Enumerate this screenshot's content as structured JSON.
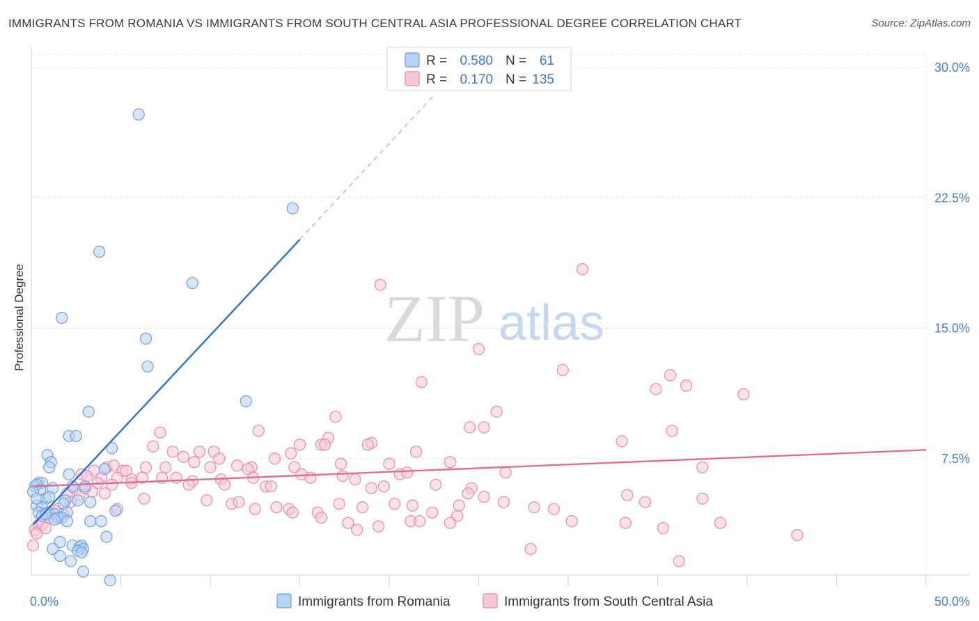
{
  "title": "IMMIGRANTS FROM ROMANIA VS IMMIGRANTS FROM SOUTH CENTRAL ASIA PROFESSIONAL DEGREE CORRELATION CHART",
  "source": "Source: ZipAtlas.com",
  "watermark": {
    "zip": "ZIP",
    "atlas": "atlas"
  },
  "colors": {
    "blue": "#6f9fe0",
    "blue_fill": "#b8d2f3",
    "blue_line": "#2c6fcf",
    "pink": "#e88aa8",
    "pink_fill": "#f7c9d8",
    "pink_line": "#e06c95",
    "grid": "#e3e3e3",
    "tick_text": "#4a7cc4"
  },
  "legend": {
    "r_label": "R =",
    "n_label": "N =",
    "rows": [
      {
        "r": "0.580",
        "n": "61"
      },
      {
        "r": "0.170",
        "n": "135"
      }
    ]
  },
  "chart_data": {
    "type": "scatter",
    "xlabel": "",
    "ylabel": "Professional Degree",
    "xlim": [
      0,
      50
    ],
    "ylim": [
      0,
      30.5
    ],
    "x_tick_labels": [
      "0.0%",
      "50.0%"
    ],
    "y_ticks": [
      7.5,
      15.0,
      22.5,
      30.0
    ],
    "y_tick_labels": [
      "7.5%",
      "15.0%",
      "22.5%",
      "30.0%"
    ],
    "series": [
      {
        "name": "Immigrants from Romania",
        "color": "blue",
        "trend": {
          "x0": 0.1,
          "y0": 3.7,
          "x1": 15.0,
          "y1": 20.1,
          "dash_x1": 22.5,
          "dash_y1": 28.4
        },
        "points": [
          [
            6.0,
            27.3
          ],
          [
            14.6,
            21.9
          ],
          [
            3.8,
            19.4
          ],
          [
            9.0,
            17.6
          ],
          [
            1.7,
            15.6
          ],
          [
            6.4,
            14.4
          ],
          [
            6.5,
            12.8
          ],
          [
            12.0,
            10.8
          ],
          [
            3.2,
            10.2
          ],
          [
            2.1,
            8.8
          ],
          [
            2.5,
            8.8
          ],
          [
            0.9,
            7.7
          ],
          [
            4.5,
            8.1
          ],
          [
            1.1,
            7.3
          ],
          [
            1.0,
            7.0
          ],
          [
            4.1,
            6.9
          ],
          [
            2.1,
            6.6
          ],
          [
            0.4,
            6.1
          ],
          [
            0.6,
            6.1
          ],
          [
            0.2,
            5.9
          ],
          [
            0.3,
            6.0
          ],
          [
            0.5,
            5.7
          ],
          [
            0.1,
            5.6
          ],
          [
            1.2,
            5.8
          ],
          [
            2.3,
            5.9
          ],
          [
            3.0,
            5.9
          ],
          [
            0.8,
            5.2
          ],
          [
            1.9,
            5.1
          ],
          [
            0.3,
            4.8
          ],
          [
            0.6,
            4.7
          ],
          [
            1.8,
            4.9
          ],
          [
            2.6,
            5.1
          ],
          [
            3.3,
            5.0
          ],
          [
            0.4,
            4.4
          ],
          [
            0.9,
            4.4
          ],
          [
            1.3,
            4.3
          ],
          [
            2.0,
            4.4
          ],
          [
            0.6,
            4.2
          ],
          [
            1.5,
            4.1
          ],
          [
            1.7,
            4.1
          ],
          [
            1.3,
            4.0
          ],
          [
            2.0,
            3.9
          ],
          [
            3.3,
            3.9
          ],
          [
            3.9,
            3.9
          ],
          [
            4.7,
            4.5
          ],
          [
            0.8,
            4.3
          ],
          [
            4.2,
            3.0
          ],
          [
            1.6,
            2.7
          ],
          [
            2.3,
            2.5
          ],
          [
            2.8,
            2.5
          ],
          [
            2.7,
            2.4
          ],
          [
            2.9,
            2.3
          ],
          [
            1.2,
            2.3
          ],
          [
            1.6,
            1.9
          ],
          [
            2.6,
            2.2
          ],
          [
            2.8,
            2.1
          ],
          [
            2.2,
            1.6
          ],
          [
            2.9,
            1.0
          ],
          [
            4.4,
            0.5
          ],
          [
            0.3,
            5.2
          ],
          [
            1.0,
            5.3
          ]
        ]
      },
      {
        "name": "Immigrants from South Central Asia",
        "color": "pink",
        "trend": {
          "x0": 0.0,
          "y0": 5.9,
          "x1": 50.0,
          "y1": 8.0
        },
        "points": [
          [
            30.8,
            18.4
          ],
          [
            19.5,
            17.5
          ],
          [
            25.0,
            13.8
          ],
          [
            29.7,
            12.6
          ],
          [
            35.7,
            12.3
          ],
          [
            21.8,
            11.9
          ],
          [
            36.6,
            11.7
          ],
          [
            34.9,
            11.5
          ],
          [
            39.8,
            11.2
          ],
          [
            26.0,
            10.2
          ],
          [
            17.0,
            9.9
          ],
          [
            12.7,
            9.1
          ],
          [
            7.2,
            9.0
          ],
          [
            24.5,
            9.3
          ],
          [
            25.3,
            9.3
          ],
          [
            35.8,
            9.1
          ],
          [
            16.6,
            8.7
          ],
          [
            19.0,
            8.4
          ],
          [
            33.0,
            8.5
          ],
          [
            6.8,
            8.2
          ],
          [
            15.0,
            8.3
          ],
          [
            16.2,
            8.3
          ],
          [
            16.4,
            8.3
          ],
          [
            18.8,
            8.3
          ],
          [
            7.9,
            7.9
          ],
          [
            9.4,
            7.9
          ],
          [
            10.2,
            7.9
          ],
          [
            21.5,
            7.9
          ],
          [
            14.5,
            7.8
          ],
          [
            8.5,
            7.6
          ],
          [
            10.5,
            7.5
          ],
          [
            13.6,
            7.5
          ],
          [
            23.4,
            7.3
          ],
          [
            12.3,
            7.0
          ],
          [
            14.7,
            7.0
          ],
          [
            17.3,
            7.2
          ],
          [
            20.0,
            7.2
          ],
          [
            37.5,
            7.0
          ],
          [
            11.5,
            7.1
          ],
          [
            6.4,
            7.0
          ],
          [
            7.5,
            7.0
          ],
          [
            9.1,
            7.3
          ],
          [
            10.0,
            7.0
          ],
          [
            12.1,
            6.9
          ],
          [
            4.2,
            7.0
          ],
          [
            4.6,
            7.1
          ],
          [
            5.1,
            6.8
          ],
          [
            5.3,
            6.8
          ],
          [
            3.5,
            6.8
          ],
          [
            2.8,
            6.6
          ],
          [
            3.1,
            6.5
          ],
          [
            3.9,
            6.4
          ],
          [
            4.8,
            6.4
          ],
          [
            5.6,
            6.3
          ],
          [
            6.2,
            6.4
          ],
          [
            7.3,
            6.4
          ],
          [
            8.1,
            6.4
          ],
          [
            9.0,
            6.2
          ],
          [
            10.6,
            6.3
          ],
          [
            12.4,
            6.4
          ],
          [
            15.6,
            6.4
          ],
          [
            17.4,
            6.5
          ],
          [
            18.1,
            6.3
          ],
          [
            20.6,
            6.6
          ],
          [
            21.0,
            6.7
          ],
          [
            26.5,
            6.7
          ],
          [
            2.4,
            5.8
          ],
          [
            3.0,
            5.9
          ],
          [
            3.7,
            6.1
          ],
          [
            4.5,
            6.0
          ],
          [
            5.6,
            6.1
          ],
          [
            8.8,
            6.0
          ],
          [
            10.8,
            6.0
          ],
          [
            13.1,
            5.9
          ],
          [
            13.4,
            5.9
          ],
          [
            15.1,
            6.6
          ],
          [
            19.0,
            5.8
          ],
          [
            19.7,
            5.9
          ],
          [
            22.6,
            6.0
          ],
          [
            24.6,
            5.8
          ],
          [
            24.4,
            5.5
          ],
          [
            25.3,
            5.3
          ],
          [
            2.0,
            5.5
          ],
          [
            2.7,
            5.4
          ],
          [
            3.4,
            5.6
          ],
          [
            4.1,
            5.5
          ],
          [
            6.3,
            5.2
          ],
          [
            9.8,
            5.1
          ],
          [
            11.2,
            4.9
          ],
          [
            12.5,
            4.6
          ],
          [
            17.2,
            4.9
          ],
          [
            21.3,
            4.8
          ],
          [
            23.9,
            4.8
          ],
          [
            26.4,
            5.0
          ],
          [
            28.1,
            4.7
          ],
          [
            29.2,
            4.6
          ],
          [
            33.3,
            5.4
          ],
          [
            34.3,
            5.0
          ],
          [
            37.5,
            5.2
          ],
          [
            11.6,
            5.0
          ],
          [
            13.7,
            4.7
          ],
          [
            14.4,
            4.6
          ],
          [
            18.5,
            4.7
          ],
          [
            20.3,
            4.9
          ],
          [
            14.6,
            4.4
          ],
          [
            16.0,
            4.4
          ],
          [
            16.2,
            4.1
          ],
          [
            22.4,
            4.4
          ],
          [
            23.8,
            4.2
          ],
          [
            1.3,
            4.5
          ],
          [
            1.8,
            4.3
          ],
          [
            1.0,
            4.1
          ],
          [
            4.8,
            4.6
          ],
          [
            17.7,
            3.8
          ],
          [
            21.2,
            3.9
          ],
          [
            21.7,
            3.9
          ],
          [
            23.4,
            3.8
          ],
          [
            19.4,
            3.6
          ],
          [
            30.2,
            3.9
          ],
          [
            33.2,
            3.8
          ],
          [
            38.5,
            3.8
          ],
          [
            35.3,
            3.5
          ],
          [
            18.2,
            3.4
          ],
          [
            42.8,
            3.1
          ],
          [
            0.2,
            3.4
          ],
          [
            0.4,
            3.7
          ],
          [
            0.3,
            3.2
          ],
          [
            0.1,
            2.5
          ],
          [
            27.9,
            2.3
          ],
          [
            36.2,
            1.6
          ],
          [
            0.6,
            3.7
          ],
          [
            2.2,
            5.0
          ],
          [
            1.5,
            4.6
          ],
          [
            0.8,
            3.5
          ],
          [
            3.0,
            5.8
          ]
        ]
      }
    ]
  }
}
